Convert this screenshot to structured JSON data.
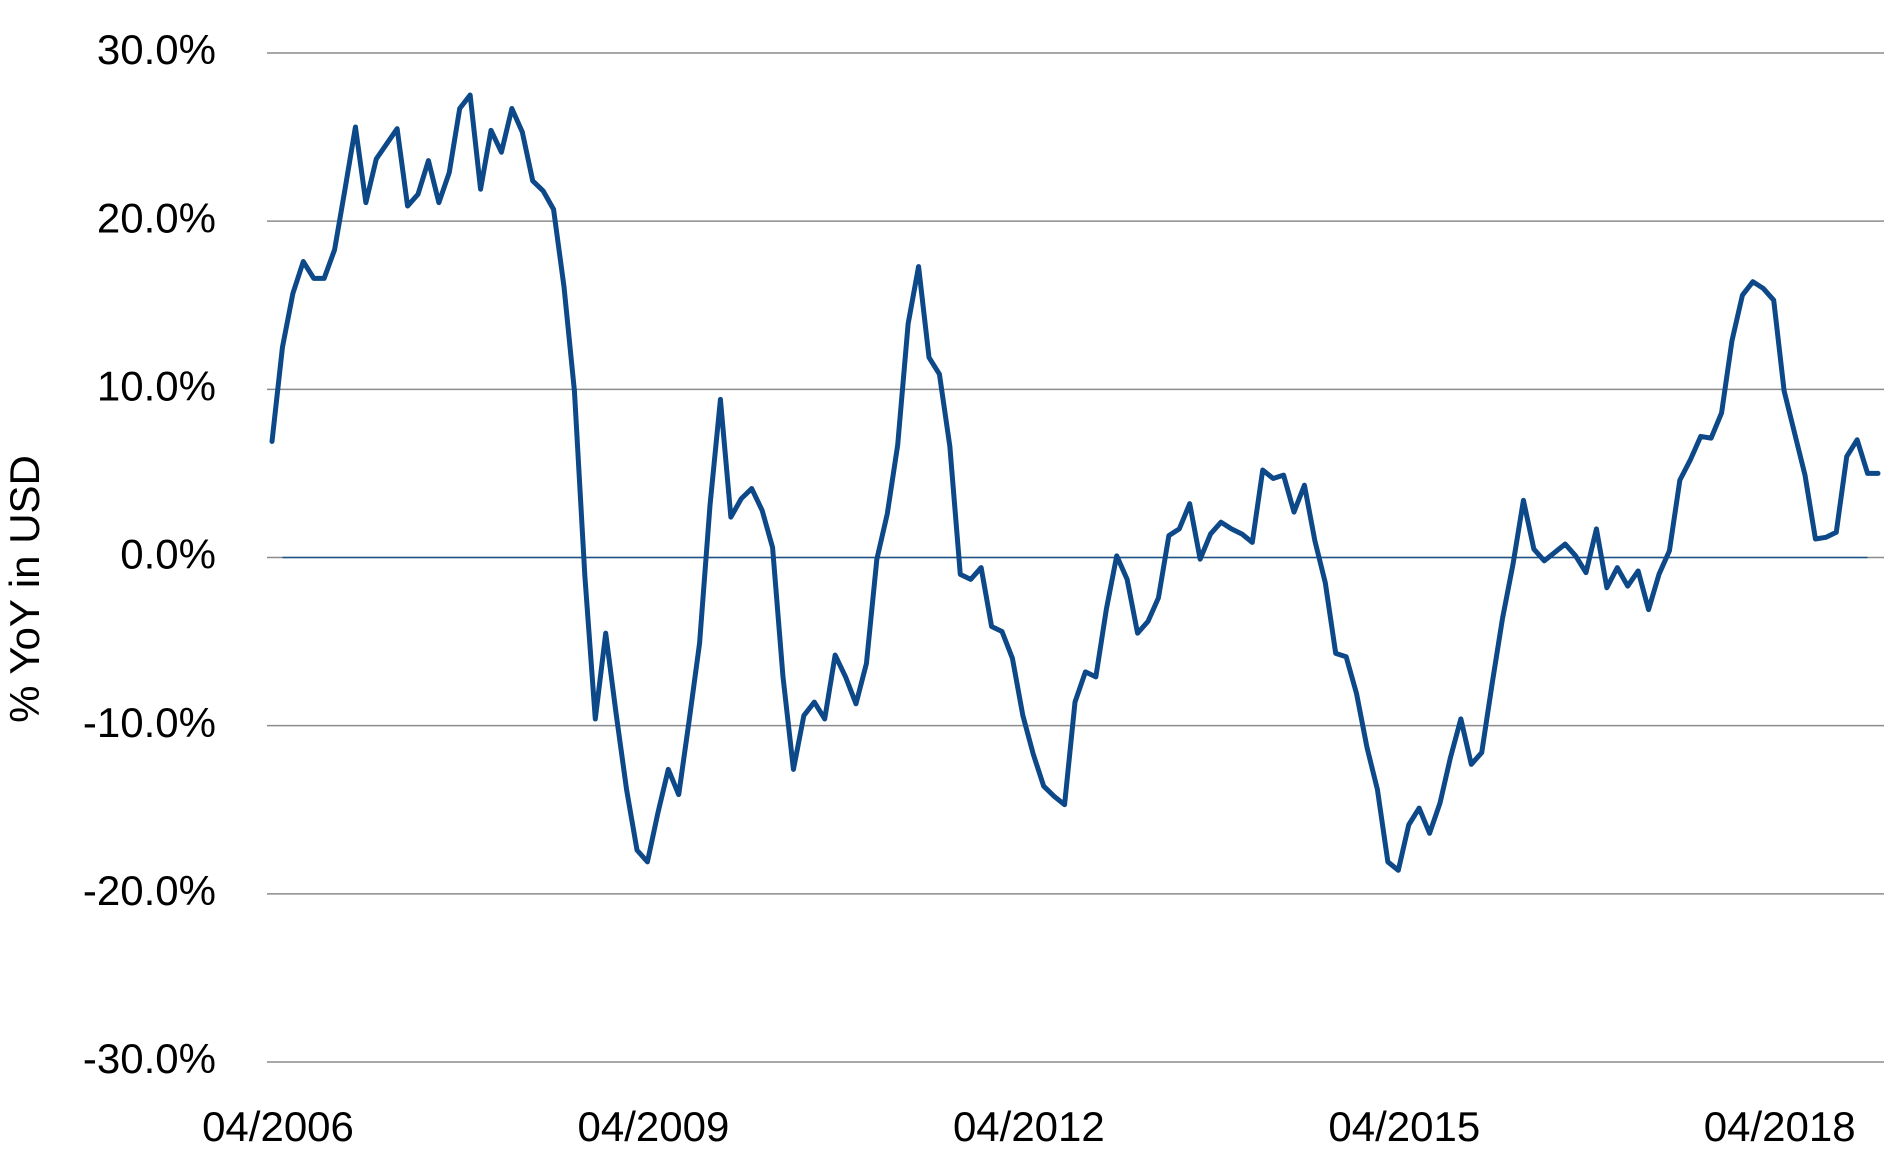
{
  "chart_data": {
    "type": "line",
    "y_label": "% YoY in USD",
    "color": "#0d4888",
    "grid": true,
    "ylim": [
      -30,
      30
    ],
    "yticks": [
      {
        "value": -30,
        "label": "-30.0%"
      },
      {
        "value": -20,
        "label": "-20.0%"
      },
      {
        "value": -10,
        "label": "-10.0%"
      },
      {
        "value": 0,
        "label": "0.0%"
      },
      {
        "value": 10,
        "label": "10.0%"
      },
      {
        "value": 20,
        "label": "20.0%"
      },
      {
        "value": 30,
        "label": "30.0%"
      }
    ],
    "categories": [
      "04/2006",
      null,
      null,
      null,
      null,
      null,
      null,
      null,
      null,
      null,
      null,
      null,
      null,
      null,
      null,
      null,
      null,
      null,
      null,
      null,
      null,
      null,
      null,
      null,
      null,
      null,
      null,
      null,
      null,
      null,
      null,
      null,
      null,
      null,
      null,
      null,
      "04/2009",
      null,
      null,
      null,
      null,
      null,
      null,
      null,
      null,
      null,
      null,
      null,
      null,
      null,
      null,
      null,
      null,
      null,
      null,
      null,
      null,
      null,
      null,
      null,
      null,
      null,
      null,
      null,
      null,
      null,
      null,
      null,
      null,
      null,
      null,
      null,
      "04/2012",
      null,
      null,
      null,
      null,
      null,
      null,
      null,
      null,
      null,
      null,
      null,
      null,
      null,
      null,
      null,
      null,
      null,
      null,
      null,
      null,
      null,
      null,
      null,
      null,
      null,
      null,
      null,
      null,
      null,
      null,
      null,
      null,
      null,
      null,
      null,
      "04/2015",
      null,
      null,
      null,
      null,
      null,
      null,
      null,
      null,
      null,
      null,
      null,
      null,
      null,
      null,
      null,
      null,
      null,
      null,
      null,
      null,
      null,
      null,
      null,
      null,
      null,
      null,
      null,
      null,
      null,
      null,
      null,
      null,
      null,
      null,
      null,
      "04/2018",
      null,
      null,
      null,
      null,
      null,
      null,
      null,
      null,
      null,
      null
    ],
    "values": [
      6.9,
      12.5,
      15.7,
      17.6,
      16.6,
      16.6,
      18.3,
      21.9,
      25.6,
      21.1,
      23.7,
      24.6,
      25.5,
      20.9,
      21.6,
      23.6,
      21.1,
      22.9,
      26.7,
      27.5,
      21.9,
      25.4,
      24.1,
      26.7,
      25.3,
      22.4,
      21.8,
      20.7,
      16.1,
      9.9,
      -1.1,
      -9.6,
      -4.5,
      -9.3,
      -13.8,
      -17.4,
      -18.1,
      -15.2,
      -12.6,
      -14.1,
      -9.7,
      -5.1,
      3.1,
      9.4,
      2.4,
      3.5,
      4.1,
      2.8,
      0.6,
      -7.1,
      -12.6,
      -9.4,
      -8.6,
      -9.6,
      -5.8,
      -7.1,
      -8.7,
      -6.3,
      -0.1,
      2.6,
      6.7,
      13.9,
      17.3,
      11.9,
      10.9,
      6.6,
      -1.0,
      -1.3,
      -0.6,
      -4.1,
      -4.4,
      -6.0,
      -9.4,
      -11.7,
      -13.6,
      -14.2,
      -14.7,
      -8.6,
      -6.8,
      -7.1,
      -3.1,
      0.1,
      -1.3,
      -4.5,
      -3.8,
      -2.4,
      1.3,
      1.7,
      3.2,
      -0.1,
      1.4,
      2.1,
      1.7,
      1.4,
      0.9,
      5.2,
      4.7,
      4.9,
      2.7,
      4.3,
      1.0,
      -1.5,
      -5.7,
      -5.9,
      -8.1,
      -11.3,
      -13.8,
      -18.1,
      -18.6,
      -15.9,
      -14.9,
      -16.4,
      -14.6,
      -11.9,
      -9.6,
      -12.3,
      -11.6,
      -7.5,
      -3.6,
      -0.4,
      3.4,
      0.5,
      -0.2,
      0.3,
      0.8,
      0.1,
      -0.9,
      1.7,
      -1.8,
      -0.6,
      -1.7,
      -0.8,
      -3.1,
      -1.0,
      0.4,
      4.6,
      5.8,
      7.2,
      7.1,
      8.6,
      12.9,
      15.6,
      16.4,
      16.0,
      15.3,
      9.9,
      7.4,
      4.9,
      1.1,
      1.2,
      1.5,
      6.0,
      7.0,
      5.0,
      5.0
    ]
  }
}
